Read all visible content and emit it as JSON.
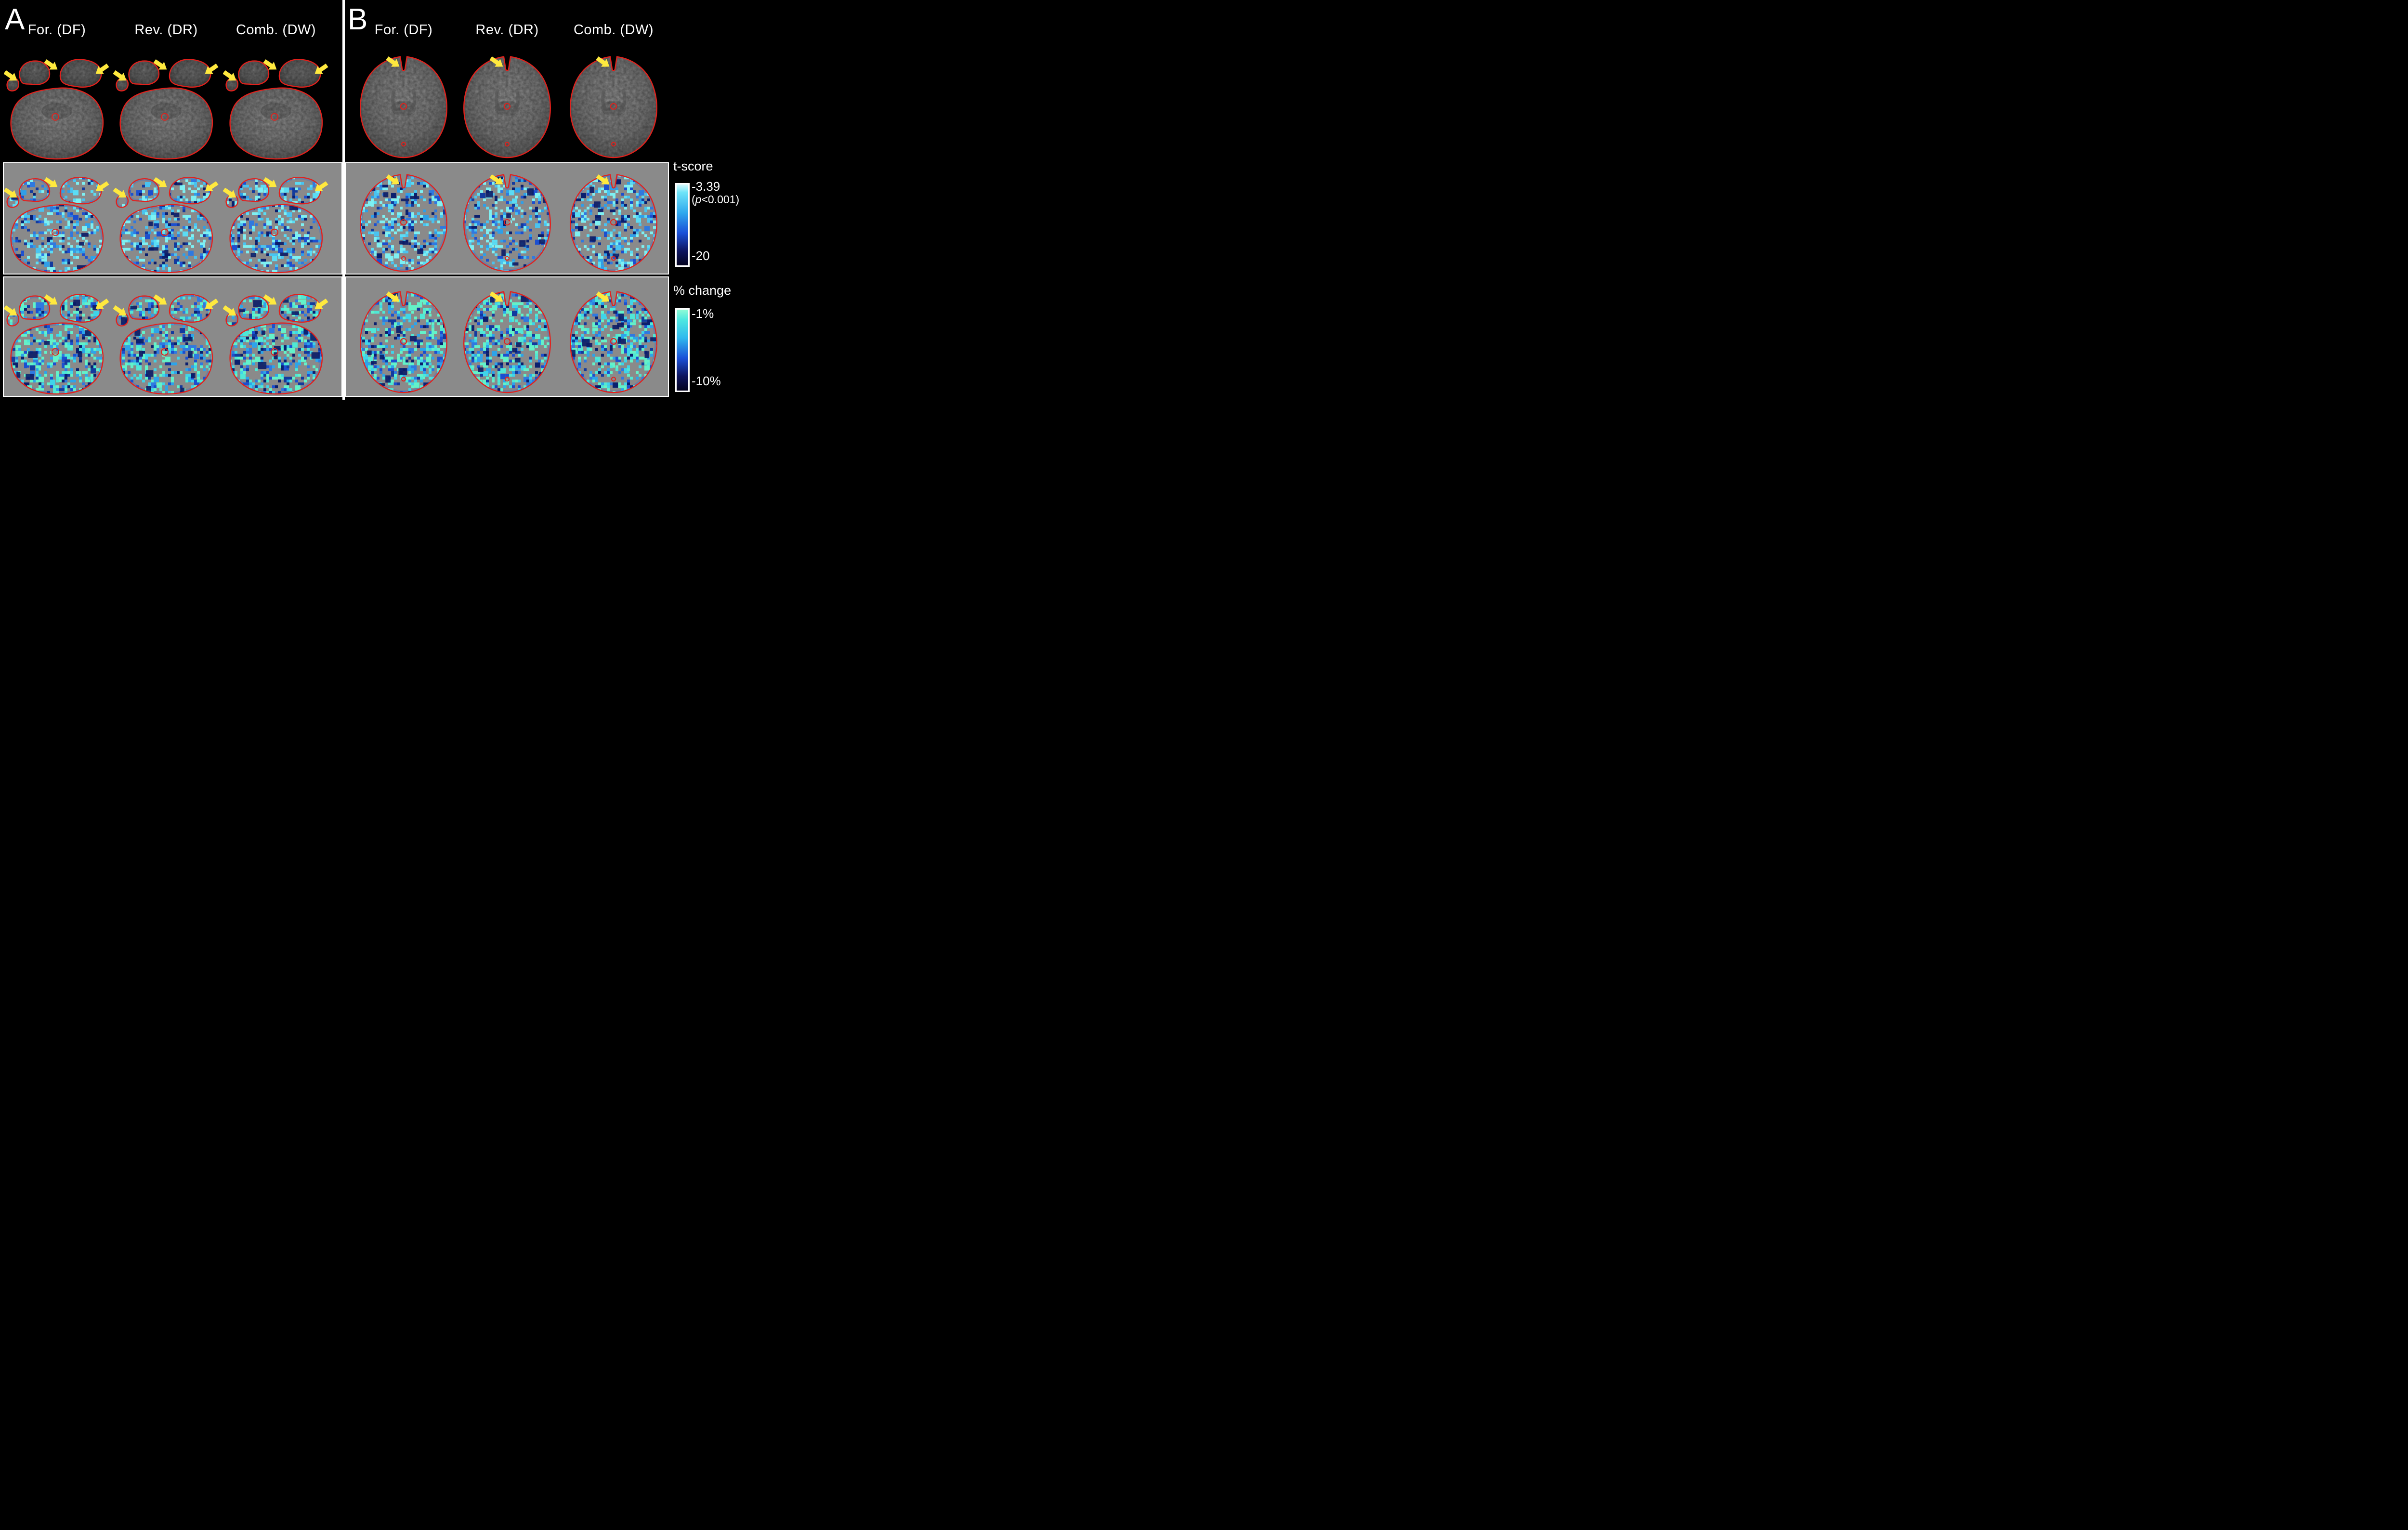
{
  "panels": {
    "a": {
      "letter": "A",
      "columns": [
        "For. (DF)",
        "Rev. (DR)",
        "Comb. (DW)"
      ]
    },
    "b": {
      "letter": "B",
      "columns": [
        "For. (DF)",
        "Rev. (DR)",
        "Comb. (DW)"
      ]
    }
  },
  "rows": [
    "anatomical EPI with brain contour",
    "t-score map",
    "percent signal change map"
  ],
  "legend": {
    "tscore": {
      "title": "t-score",
      "max_label": "-3.39",
      "p_prefix": "(",
      "p_italic": "p",
      "p_suffix": "<0.001)",
      "min_label": "-20",
      "gradient": [
        "#d8fafd 0%",
        "#6ee4f8 10%",
        "#2fa9ee 35%",
        "#1a50d8 60%",
        "#0d1560 82%",
        "#04031f 100%"
      ]
    },
    "pchange": {
      "title": "% change",
      "max_label": "-1%",
      "min_label": "-10%",
      "gradient": [
        "#8ffbd6 0%",
        "#4fe9e0 12%",
        "#2fb9ee 35%",
        "#1a50d8 60%",
        "#0d1560 82%",
        "#04031f 100%"
      ]
    }
  },
  "style": {
    "background": "#000000",
    "map_background": "#8a8a8a",
    "contour_color": "#e3201b",
    "arrow_color": "#ffe93e",
    "tscore_palette": [
      "#7ef0f2",
      "#5bdcf4",
      "#49c3f0",
      "#2f9fe8",
      "#2f79e0",
      "#1b4fd0",
      "#123a9e",
      "#0a1f6e"
    ],
    "pchange_palette": [
      "#63f2c9",
      "#4fe8d6",
      "#3fd4ea",
      "#2da4ea",
      "#2f79e0",
      "#1b4fd0",
      "#123a9e",
      "#0a1f6e"
    ]
  }
}
